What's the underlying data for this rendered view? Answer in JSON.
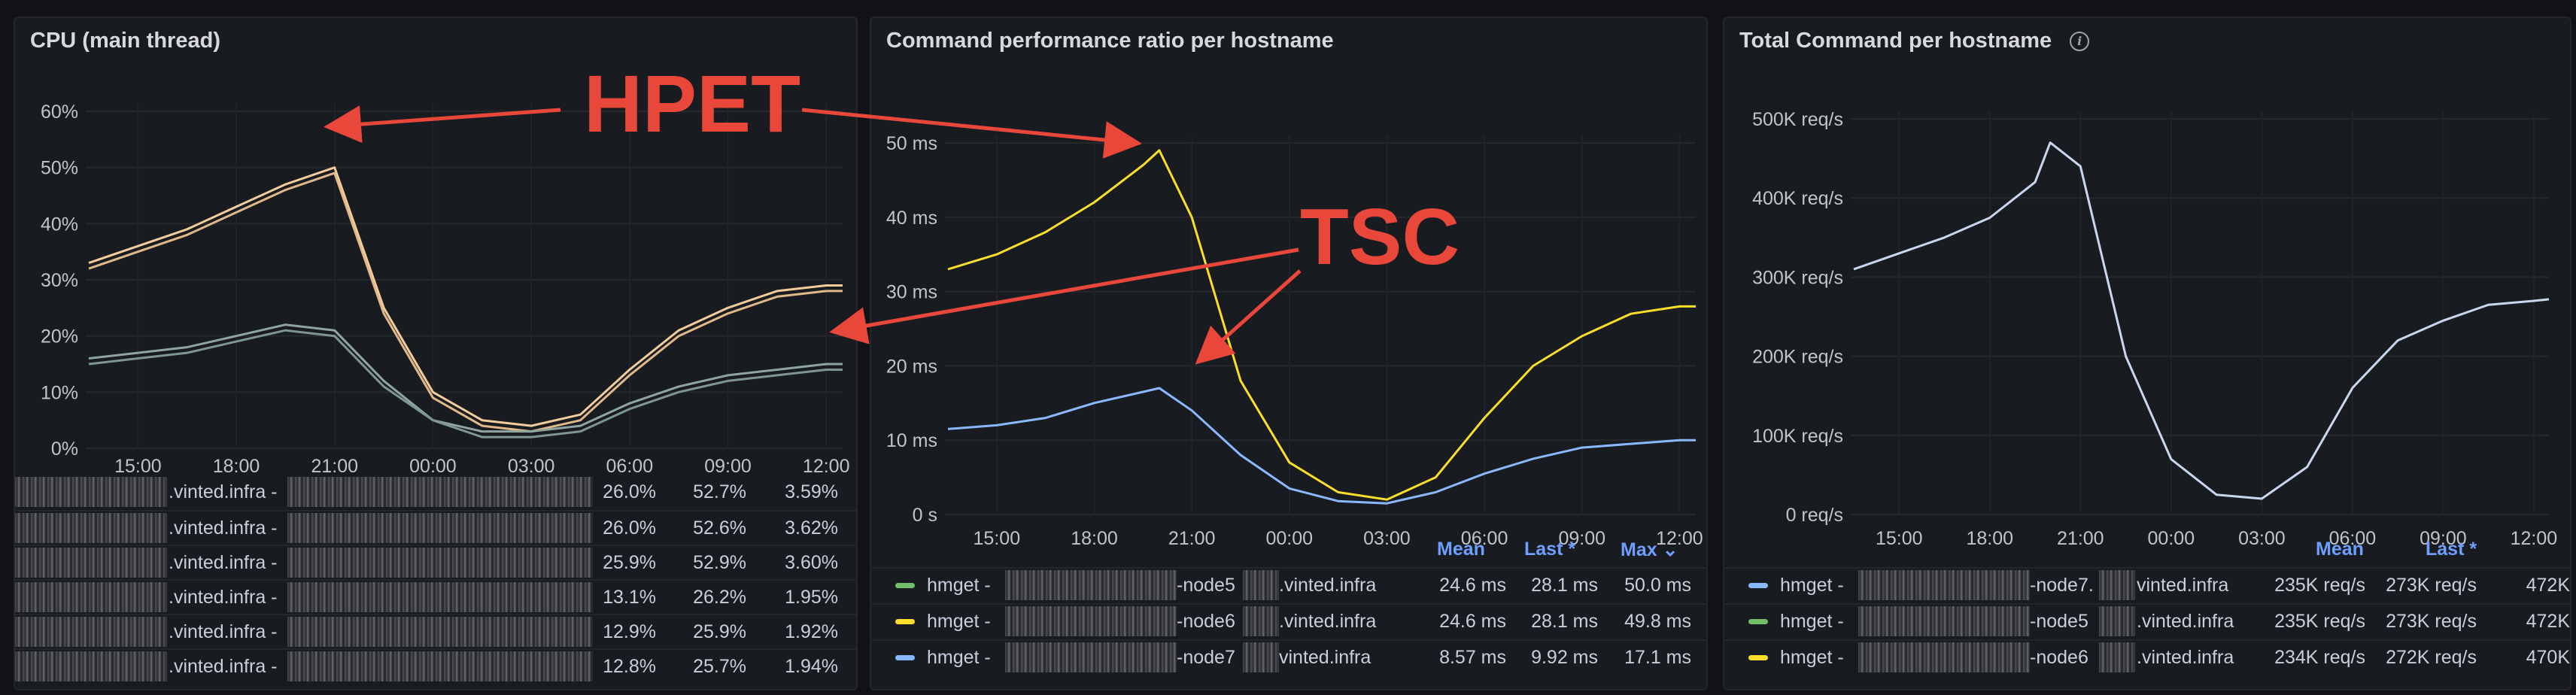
{
  "annotations": {
    "hpet": "HPET",
    "tsc": "TSC"
  },
  "panels": {
    "cpu": {
      "title": "CPU (main thread)",
      "legend_rows": [
        {
          "name": ".vinted.infra -",
          "v1": "26.0%",
          "v2": "52.7%",
          "v3": "3.59%"
        },
        {
          "name": ".vinted.infra -",
          "v1": "26.0%",
          "v2": "52.6%",
          "v3": "3.62%"
        },
        {
          "name": ".vinted.infra -",
          "v1": "25.9%",
          "v2": "52.9%",
          "v3": "3.60%"
        },
        {
          "name": ".vinted.infra -",
          "v1": "13.1%",
          "v2": "26.2%",
          "v3": "1.95%"
        },
        {
          "name": ".vinted.infra -",
          "v1": "12.9%",
          "v2": "25.9%",
          "v3": "1.92%"
        },
        {
          "name": ".vinted.infra -",
          "v1": "12.8%",
          "v2": "25.7%",
          "v3": "1.94%"
        }
      ]
    },
    "ratio": {
      "title": "Command performance ratio per hostname",
      "headers": {
        "mean": "Mean",
        "last": "Last *",
        "max": "Max ⌄"
      },
      "legend_rows": [
        {
          "prefix": "hmget -",
          "node": "-node5",
          "suffix": ".vinted.infra",
          "mean": "24.6 ms",
          "last": "28.1 ms",
          "max": "50.0 ms",
          "color": "#73bf69"
        },
        {
          "prefix": "hmget -",
          "node": "-node6",
          "suffix": ".vinted.infra",
          "mean": "24.6 ms",
          "last": "28.1 ms",
          "max": "49.8 ms",
          "color": "#fade2a"
        },
        {
          "prefix": "hmget -",
          "node": "-node7",
          "suffix": "vinted.infra",
          "mean": "8.57 ms",
          "last": "9.92 ms",
          "max": "17.1 ms",
          "color": "#8ab8ff"
        }
      ]
    },
    "total": {
      "title": "Total Command per hostname",
      "headers": {
        "mean": "Mean",
        "last": "Last *"
      },
      "legend_rows": [
        {
          "prefix": "hmget -",
          "node": "-node7.",
          "suffix": "vinted.infra",
          "mean": "235K req/s",
          "last": "273K req/s",
          "max": "472K",
          "color": "#8ab8ff"
        },
        {
          "prefix": "hmget -",
          "node": "-node5",
          "suffix": ".vinted.infra",
          "mean": "235K req/s",
          "last": "273K req/s",
          "max": "472K",
          "color": "#73bf69"
        },
        {
          "prefix": "hmget -",
          "node": "-node6",
          "suffix": ".vinted.infra",
          "mean": "234K req/s",
          "last": "272K req/s",
          "max": "470K",
          "color": "#fade2a"
        }
      ]
    }
  },
  "chart_data": [
    {
      "type": "line",
      "title": "CPU (main thread)",
      "x": [
        "13:30",
        "15:00",
        "16:30",
        "18:00",
        "19:30",
        "21:00",
        "22:30",
        "00:00",
        "01:30",
        "03:00",
        "04:30",
        "06:00",
        "07:30",
        "09:00",
        "10:30",
        "12:00",
        "12:30"
      ],
      "x_ticks": [
        "15:00",
        "18:00",
        "21:00",
        "00:00",
        "03:00",
        "06:00",
        "09:00",
        "12:00"
      ],
      "y_ticks": [
        "0%",
        "10%",
        "20%",
        "30%",
        "40%",
        "50%",
        "60%"
      ],
      "ylim": [
        0,
        60
      ],
      "series": [
        {
          "color": "#f2cc9c",
          "values": [
            33,
            36,
            39,
            43,
            47,
            50,
            25,
            10,
            5,
            4,
            6,
            14,
            21,
            25,
            28,
            29,
            29
          ]
        },
        {
          "color": "#e0b88a",
          "values": [
            32,
            35,
            38,
            42,
            46,
            49,
            24,
            9,
            4,
            3,
            5,
            13,
            20,
            24,
            27,
            28,
            28
          ]
        },
        {
          "color": "#8fa6a0",
          "values": [
            16,
            17,
            18,
            20,
            22,
            21,
            12,
            5,
            3,
            3,
            4,
            8,
            11,
            13,
            14,
            15,
            15
          ]
        },
        {
          "color": "#7d9690",
          "values": [
            15,
            16,
            17,
            19,
            21,
            20,
            11,
            5,
            2,
            2,
            3,
            7,
            10,
            12,
            13,
            14,
            14
          ]
        }
      ]
    },
    {
      "type": "line",
      "title": "Command performance ratio per hostname",
      "x": [
        "13:30",
        "15:00",
        "16:30",
        "18:00",
        "19:30",
        "20:00",
        "21:00",
        "22:30",
        "00:00",
        "01:30",
        "03:00",
        "04:30",
        "06:00",
        "07:30",
        "09:00",
        "10:30",
        "12:00",
        "12:30"
      ],
      "x_ticks": [
        "15:00",
        "18:00",
        "21:00",
        "00:00",
        "03:00",
        "06:00",
        "09:00",
        "12:00"
      ],
      "y_ticks": [
        "0 s",
        "10 ms",
        "20 ms",
        "30 ms",
        "40 ms",
        "50 ms"
      ],
      "ylim": [
        0,
        50
      ],
      "series": [
        {
          "color": "#fade2a",
          "values": [
            33,
            35,
            38,
            42,
            47,
            49,
            40,
            18,
            7,
            3,
            2,
            5,
            13,
            20,
            24,
            27,
            28,
            28
          ]
        },
        {
          "color": "#8ab8ff",
          "values": [
            11.5,
            12,
            13,
            15,
            16.5,
            17,
            14,
            8,
            3.5,
            1.8,
            1.5,
            3,
            5.5,
            7.5,
            9,
            9.5,
            10,
            10
          ]
        }
      ]
    },
    {
      "type": "line",
      "title": "Total Command per hostname",
      "x": [
        "13:30",
        "15:00",
        "16:30",
        "18:00",
        "19:30",
        "20:00",
        "21:00",
        "22:30",
        "00:00",
        "01:30",
        "03:00",
        "04:30",
        "06:00",
        "07:30",
        "09:00",
        "10:30",
        "12:00",
        "12:30"
      ],
      "x_ticks": [
        "15:00",
        "18:00",
        "21:00",
        "00:00",
        "03:00",
        "06:00",
        "09:00",
        "12:00"
      ],
      "y_ticks": [
        "0 req/s",
        "100K req/s",
        "200K req/s",
        "300K req/s",
        "400K req/s",
        "500K req/s"
      ],
      "ylim": [
        0,
        500
      ],
      "series": [
        {
          "color": "#c8d6ef",
          "values": [
            310,
            330,
            350,
            375,
            420,
            470,
            440,
            200,
            70,
            25,
            20,
            60,
            160,
            220,
            245,
            265,
            270,
            272
          ]
        }
      ]
    }
  ]
}
